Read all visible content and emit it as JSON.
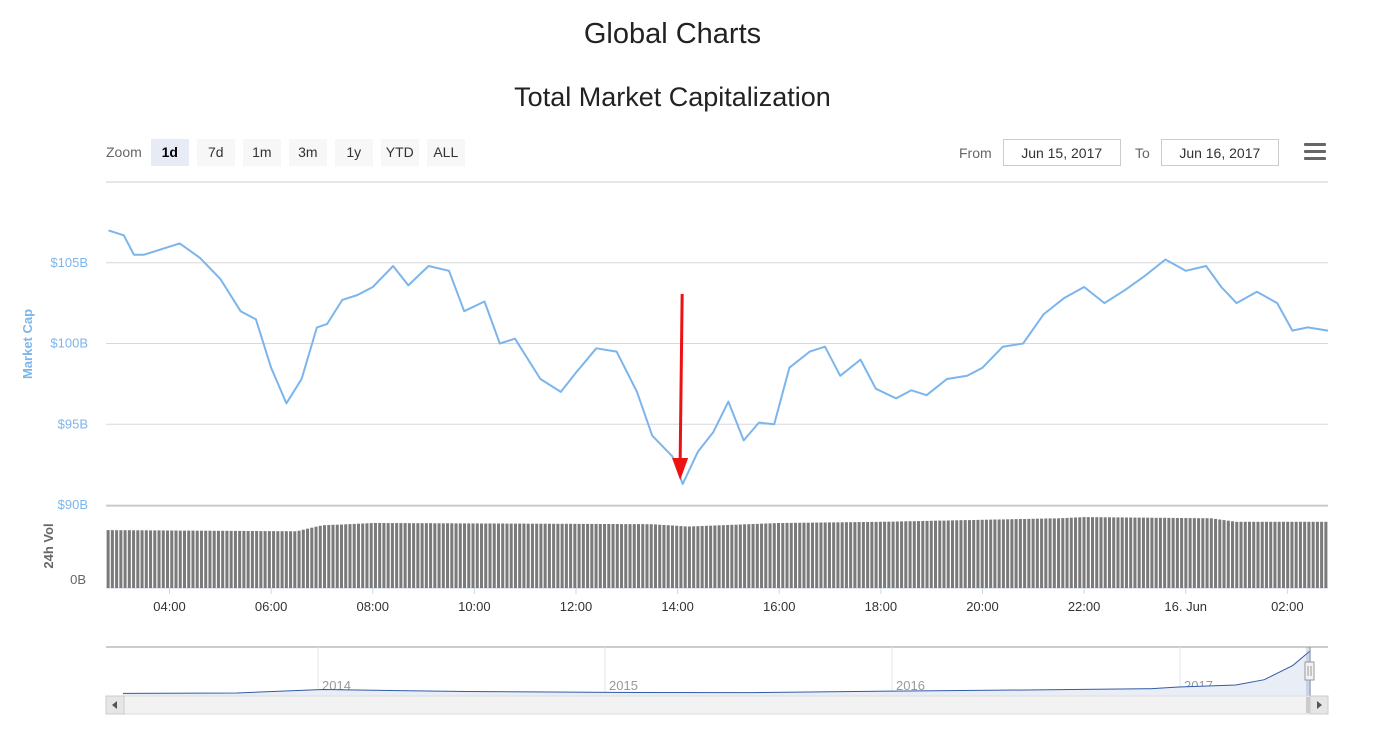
{
  "page": {
    "title": "Global Charts"
  },
  "chart": {
    "title": "Total Market Capitalization"
  },
  "zoom": {
    "label": "Zoom",
    "buttons": [
      "1d",
      "7d",
      "1m",
      "3m",
      "1y",
      "YTD",
      "ALL"
    ],
    "active": "1d"
  },
  "range": {
    "from_label": "From",
    "from_value": "Jun 15, 2017",
    "to_label": "To",
    "to_value": "Jun 16, 2017"
  },
  "menu": {
    "icon": "hamburger-menu-icon"
  },
  "colors": {
    "market_cap_line": "#7cb5ec",
    "volume_bars": "#7a7a7a",
    "navigator_line": "#335ca3",
    "annotation_arrow": "#ee1111",
    "grid": "#d8d8d8"
  },
  "chart_data": {
    "type": "line",
    "title": "Total Market Capitalization",
    "date_range": [
      "Jun 15, 2017",
      "Jun 16, 2017"
    ],
    "x_tick_labels": [
      "04:00",
      "06:00",
      "08:00",
      "10:00",
      "12:00",
      "14:00",
      "16:00",
      "18:00",
      "20:00",
      "22:00",
      "16. Jun",
      "02:00"
    ],
    "x_range_hours": [
      2.75,
      26.8
    ],
    "market_cap": {
      "ylabel": "Market Cap",
      "unit": "billion USD",
      "ylim": [
        90,
        110
      ],
      "tick_values": [
        90,
        95,
        100,
        105
      ],
      "tick_labels": [
        "$90B",
        "$95B",
        "$100B",
        "$105B"
      ],
      "series": {
        "name": "Market Cap",
        "x": [
          2.8,
          3.1,
          3.3,
          3.5,
          4.2,
          4.6,
          5.0,
          5.4,
          5.7,
          6.0,
          6.3,
          6.6,
          6.9,
          7.1,
          7.4,
          7.7,
          8.0,
          8.4,
          8.7,
          9.1,
          9.5,
          9.8,
          10.2,
          10.5,
          10.8,
          11.3,
          11.7,
          12.0,
          12.4,
          12.8,
          13.2,
          13.5,
          13.9,
          14.1,
          14.4,
          14.7,
          15.0,
          15.3,
          15.6,
          15.9,
          16.2,
          16.6,
          16.9,
          17.2,
          17.6,
          17.9,
          18.3,
          18.6,
          18.9,
          19.3,
          19.7,
          20.0,
          20.4,
          20.8,
          21.2,
          21.6,
          22.0,
          22.4,
          22.8,
          23.2,
          23.6,
          24.0,
          24.4,
          24.7,
          25.0,
          25.4,
          25.8,
          26.1,
          26.4,
          26.8
        ],
        "values": [
          107.0,
          106.7,
          105.5,
          105.5,
          106.2,
          105.3,
          104.0,
          102.0,
          101.5,
          98.5,
          96.3,
          97.8,
          101.0,
          101.2,
          102.7,
          103.0,
          103.5,
          104.8,
          103.6,
          104.8,
          104.5,
          102.0,
          102.6,
          100.0,
          100.3,
          97.8,
          97.0,
          98.2,
          99.7,
          99.5,
          97.0,
          94.3,
          93.0,
          91.3,
          93.3,
          94.5,
          96.4,
          94.0,
          95.1,
          95.0,
          98.5,
          99.5,
          99.8,
          98.0,
          99.0,
          97.2,
          96.6,
          97.1,
          96.8,
          97.8,
          98.0,
          98.5,
          99.8,
          100.0,
          101.8,
          102.8,
          103.5,
          102.5,
          103.3,
          104.2,
          105.2,
          104.5,
          104.8,
          103.5,
          102.5,
          103.2,
          102.5,
          100.8,
          101.0,
          100.8
        ]
      }
    },
    "volume": {
      "ylabel": "24h Vol",
      "tick_labels": [
        "0B"
      ],
      "series": {
        "name": "24h Vol",
        "x": [
          2.75,
          6.5,
          7.0,
          8.0,
          13.5,
          14.2,
          16.0,
          18.0,
          21.5,
          22.0,
          24.5,
          25.0,
          26.8
        ],
        "values": [
          2.45,
          2.4,
          2.65,
          2.75,
          2.7,
          2.6,
          2.75,
          2.8,
          2.95,
          3.0,
          2.95,
          2.8,
          2.8
        ]
      }
    },
    "annotation": {
      "type": "arrow",
      "points_to_x": 14.05,
      "points_to_value": 91.3
    },
    "navigator": {
      "year_labels": [
        "2014",
        "2015",
        "2016",
        "2017"
      ],
      "series": {
        "x": [
          2013.3,
          2013.7,
          2014.0,
          2014.3,
          2014.5,
          2014.8,
          2015.0,
          2015.5,
          2016.0,
          2016.5,
          2016.9,
          2017.0,
          2017.2,
          2017.3,
          2017.4,
          2017.46
        ],
        "values": [
          1.5,
          2.5,
          11,
          8,
          6,
          5,
          4,
          3.5,
          7,
          10,
          13,
          17,
          22,
          35,
          70,
          105
        ]
      }
    }
  }
}
